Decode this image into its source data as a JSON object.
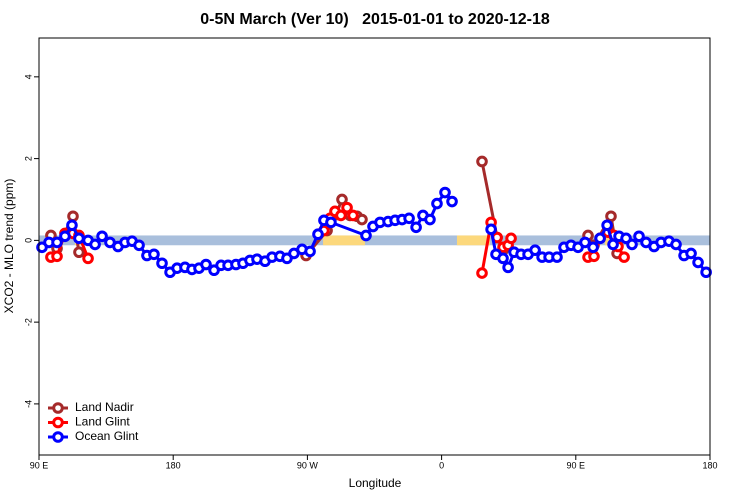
{
  "chart_data": {
    "type": "line",
    "title": "0-5N March (Ver 10)   2015-01-01 to 2020-12-18",
    "x_label": "Longitude",
    "y_label": "XCO2 - MLO trend (ppm)",
    "xlim": [
      90,
      540
    ],
    "ylim": [
      -5.25,
      4.95
    ],
    "xticks": [
      {
        "value": 90,
        "label": "90 E"
      },
      {
        "value": 180,
        "label": "180"
      },
      {
        "value": 270,
        "label": "90 W"
      },
      {
        "value": 360,
        "label": "0"
      },
      {
        "value": 450,
        "label": "90 E"
      },
      {
        "value": 540,
        "label": "180"
      }
    ],
    "yticks": [
      -4,
      -2,
      0,
      2,
      4
    ],
    "band": [
      -0.12,
      0.12
    ],
    "band_color": "#a9bfdc",
    "highlight_color": "#fcd87c",
    "highlight_spans": [
      [
        114.1,
        118.8
      ],
      [
        280.5,
        308.6
      ],
      [
        370.3,
        392.5
      ],
      [
        469.6,
        476.3
      ]
    ],
    "legend": "bottom-left",
    "series": [
      {
        "name": "Land Nadir",
        "color": "#a52a2a",
        "x": [
          98.0,
          102.1,
          112.8,
          116.8,
          null,
          269.1,
          283.2,
          289.2,
          293.2,
          298.6,
          303.3,
          306.6,
          null,
          387.1,
          397.2,
          401.2,
          null,
          458.2,
          462.2,
          473.6,
          477.7
        ],
        "values": [
          0.12,
          -0.2,
          0.59,
          -0.29,
          null,
          -0.37,
          0.24,
          0.63,
          1.0,
          0.61,
          0.59,
          0.51,
          null,
          1.93,
          0.07,
          -0.24,
          null,
          0.12,
          -0.12,
          0.59,
          -0.32
        ]
      },
      {
        "name": "Land Glint",
        "color": "#ff0000",
        "x": [
          98.0,
          102.1,
          107.4,
          112.8,
          116.8,
          122.9,
          null,
          281.1,
          285.2,
          288.5,
          292.5,
          296.6,
          300.6,
          null,
          387.1,
          393.2,
          397.2,
          401.2,
          404.6,
          406.6,
          null,
          458.2,
          462.2,
          466.3,
          471.6,
          475.6,
          478.3,
          482.4
        ],
        "values": [
          -0.41,
          -0.39,
          0.17,
          0.17,
          0.12,
          -0.44,
          null,
          0.24,
          0.54,
          0.71,
          0.61,
          0.8,
          0.61,
          null,
          -0.8,
          0.44,
          0.07,
          -0.17,
          -0.12,
          0.05,
          null,
          -0.41,
          -0.39,
          0.05,
          0.2,
          0.12,
          -0.15,
          -0.41
        ]
      },
      {
        "name": "Ocean Glint",
        "color": "#0000ff",
        "x": [
          92.0,
          96.7,
          102.1,
          107.4,
          112.1,
          116.8,
          122.9,
          127.6,
          132.3,
          137.6,
          143.0,
          147.7,
          152.4,
          157.1,
          162.4,
          167.1,
          172.5,
          177.9,
          182.6,
          187.9,
          192.6,
          197.3,
          202.0,
          207.4,
          212.1,
          216.8,
          222.1,
          226.8,
          231.5,
          236.2,
          241.6,
          246.3,
          251.6,
          256.3,
          261.0,
          266.4,
          271.8,
          277.1,
          281.1,
          285.8,
          309.3,
          314.0,
          318.7,
          324.1,
          328.8,
          333.5,
          338.2,
          342.9,
          347.5,
          352.2,
          356.9,
          362.3,
          367.0,
          null,
          393.2,
          396.5,
          401.2,
          404.6,
          408.6,
          413.3,
          418.0,
          422.7,
          427.4,
          432.1,
          437.4,
          442.1,
          446.8,
          451.5,
          456.2,
          461.6,
          466.3,
          471.0,
          475.0,
          479.0,
          483.7,
          487.7,
          492.4,
          497.1,
          502.5,
          507.2,
          512.5,
          517.2,
          522.6,
          527.3,
          532.0,
          537.4
        ],
        "values": [
          -0.17,
          -0.05,
          -0.05,
          0.1,
          0.37,
          0.05,
          0.0,
          -0.1,
          0.1,
          -0.05,
          -0.15,
          -0.05,
          -0.02,
          -0.12,
          -0.37,
          -0.34,
          -0.56,
          -0.78,
          -0.68,
          -0.66,
          -0.71,
          -0.68,
          -0.59,
          -0.73,
          -0.61,
          -0.61,
          -0.59,
          -0.56,
          -0.49,
          -0.46,
          -0.51,
          -0.41,
          -0.39,
          -0.44,
          -0.32,
          -0.22,
          -0.27,
          0.15,
          0.49,
          0.44,
          0.12,
          0.34,
          0.44,
          0.46,
          0.49,
          0.51,
          0.54,
          0.32,
          0.61,
          0.51,
          0.9,
          1.17,
          0.95,
          null,
          0.27,
          -0.34,
          -0.44,
          -0.66,
          -0.29,
          -0.34,
          -0.34,
          -0.24,
          -0.41,
          -0.41,
          -0.41,
          -0.17,
          -0.12,
          -0.17,
          -0.05,
          -0.17,
          0.05,
          0.37,
          -0.1,
          0.1,
          0.05,
          -0.1,
          0.1,
          -0.05,
          -0.15,
          -0.05,
          -0.02,
          -0.1,
          -0.37,
          -0.32,
          -0.54,
          -0.78
        ]
      }
    ]
  }
}
